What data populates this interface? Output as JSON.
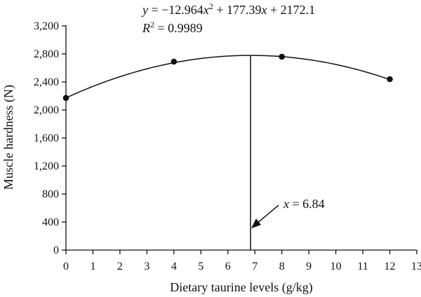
{
  "chart_data": {
    "type": "scatter",
    "xlabel": "Dietary taurine levels (g/kg)",
    "ylabel": "Muscle hardness (N)",
    "xlim": [
      0,
      13
    ],
    "ylim": [
      0,
      3200
    ],
    "xticks": [
      0,
      1,
      2,
      3,
      4,
      5,
      6,
      7,
      8,
      9,
      10,
      11,
      12,
      13
    ],
    "yticks": [
      0,
      400,
      800,
      1200,
      1600,
      2000,
      2400,
      2800,
      3200
    ],
    "ytick_labels": [
      "0",
      "400",
      "800",
      "1,200",
      "1,600",
      "2,000",
      "2,400",
      "2,800",
      "3,200"
    ],
    "grid": false,
    "points": [
      {
        "x": 0,
        "y": 2172
      },
      {
        "x": 4,
        "y": 2690
      },
      {
        "x": 8,
        "y": 2760
      },
      {
        "x": 12,
        "y": 2440
      }
    ],
    "fit": {
      "kind": "quadratic",
      "a": -12.964,
      "b": 177.39,
      "c": 2172.1,
      "x_range": [
        0,
        12
      ],
      "equation_text": {
        "y_var": "y",
        "eq_part1": " = −12.964",
        "x_var1": "x",
        "sup_2": "2",
        "eq_part2": " + 177.39",
        "x_var2": "x",
        "eq_part3": " + 2172.1",
        "r_var": "R",
        "sup_r": "2",
        "r_value": " = 0.9989"
      }
    },
    "optimum": {
      "x": 6.84,
      "label_var": "x",
      "label_value": " = 6.84"
    }
  }
}
